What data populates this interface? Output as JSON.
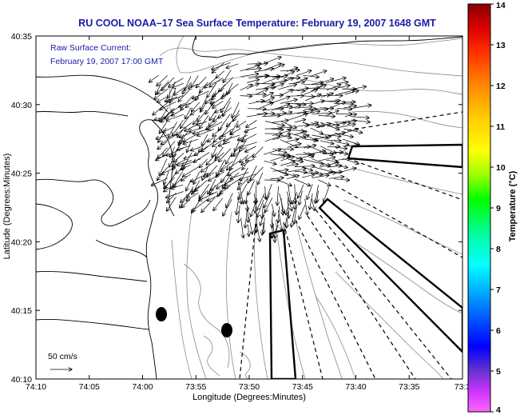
{
  "title": "RU COOL  NOAA–17  Sea Surface Temperature:  February 19, 2007 1648 GMT",
  "annotation": {
    "line1": "Raw Surface Current:",
    "line2": "February 19, 2007 17:00 GMT"
  },
  "scale_label": "50 cm/s",
  "axes": {
    "xlabel": "Longitude (Degrees:Minutes)",
    "ylabel": "Latitude (Degrees:Minutes)",
    "x_ticks": [
      "74:10",
      "74:05",
      "74:00",
      "73:55",
      "73:50",
      "73:45",
      "73:40",
      "73:35",
      "73:3"
    ],
    "y_ticks": [
      "40:35",
      "40:30",
      "40:25",
      "40:20",
      "40:15",
      "40:10"
    ]
  },
  "colorbar": {
    "label": "Temperature (°C)",
    "ticks": [
      "14",
      "13",
      "12",
      "11",
      "10",
      "9",
      "8",
      "7",
      "6",
      "5",
      "4"
    ],
    "min": 4,
    "max": 14,
    "colors": [
      "#ff66ff",
      "#cc33ff",
      "#6633cc",
      "#0000ff",
      "#0099ff",
      "#00ffff",
      "#00ff99",
      "#00ff00",
      "#99ff00",
      "#ffff00",
      "#ffcc00",
      "#ff8800",
      "#ff3300",
      "#dd0000",
      "#880000"
    ]
  },
  "chart_data": {
    "type": "map",
    "xlim": [
      "74:10",
      "73:30"
    ],
    "ylim": [
      "40:10",
      "40:35"
    ],
    "vector_scale": "50 cm/s",
    "features": [
      "coastline",
      "bathymetry contours",
      "surface current vectors",
      "radar range sectors",
      "black markers"
    ]
  }
}
